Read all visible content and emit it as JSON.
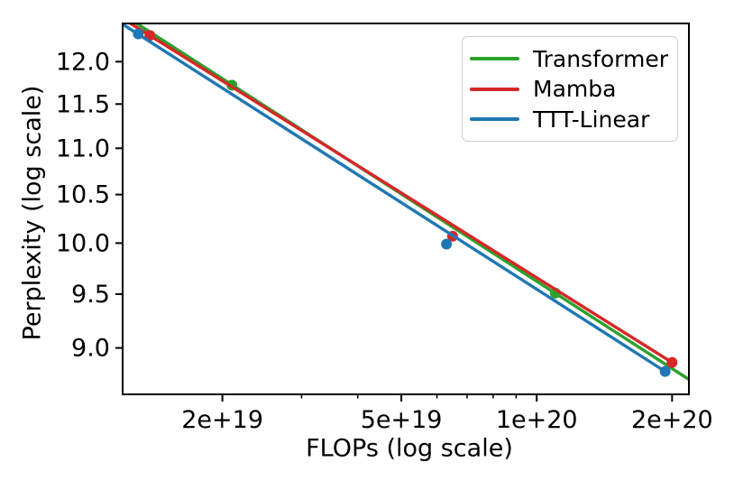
{
  "chart_data": {
    "type": "line",
    "title": "",
    "xlabel": "FLOPs (log scale)",
    "ylabel": "Perplexity (log scale)",
    "x_scale": "log",
    "y_scale": "log",
    "xlim": [
      1.2e+19,
      2.18e+20
    ],
    "ylim": [
      8.59,
      12.47
    ],
    "grid": false,
    "legend_position": "upper right",
    "x_ticks": {
      "values": [
        2e+19,
        5e+19,
        1e+20,
        2e+20
      ],
      "labels": [
        "2e+19",
        "5e+19",
        "1e+20",
        "2e+20"
      ],
      "minor_values": [
        3e+19,
        4e+19,
        6e+19,
        7e+19,
        8e+19,
        9e+19
      ]
    },
    "y_ticks": {
      "values": [
        12.0,
        11.5,
        11.0,
        10.5,
        10.0,
        9.5,
        9.0
      ],
      "labels": [
        "12.0",
        "11.5",
        "11.0",
        "10.5",
        "10.0",
        "9.5",
        "9.0"
      ]
    },
    "series": [
      {
        "name": "Transformer",
        "color": "#2ca02c",
        "points": [
          [
            2.1e+19,
            11.72
          ],
          [
            1.1e+20,
            9.51
          ]
        ],
        "trend_line": [
          [
            1.29e+19,
            12.47
          ],
          [
            2.18e+20,
            8.72
          ]
        ]
      },
      {
        "name": "Mamba",
        "color": "#d62728",
        "points": [
          [
            1.38e+19,
            12.32
          ],
          [
            6.5e+19,
            10.07
          ],
          [
            2e+20,
            8.87
          ]
        ],
        "trend_line": [
          [
            1.25e+19,
            12.47
          ],
          [
            2e+20,
            8.87
          ]
        ]
      },
      {
        "name": "TTT-Linear",
        "color": "#1f77b4",
        "points": [
          [
            1.3e+19,
            12.34
          ],
          [
            6.3e+19,
            9.99
          ],
          [
            1.93e+20,
            8.79
          ]
        ],
        "trend_line": [
          [
            1.2e+19,
            12.46
          ],
          [
            1.93e+20,
            8.79
          ]
        ]
      }
    ]
  }
}
